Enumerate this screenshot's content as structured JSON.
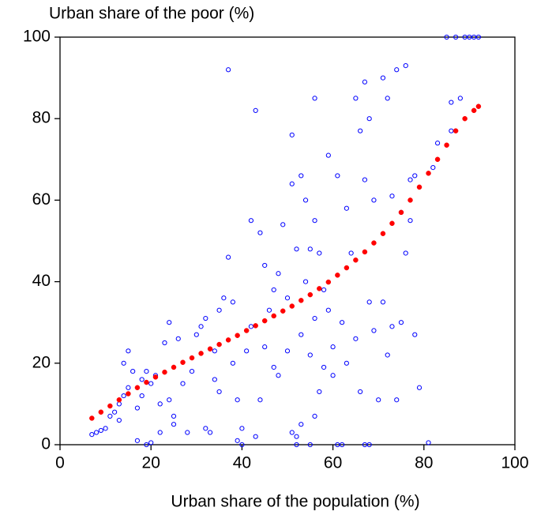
{
  "chart_data": {
    "type": "scatter",
    "title": "Urban share of the poor (%)",
    "x_label": "Urban share of the population (%)",
    "xlim": [
      0,
      100
    ],
    "xticks": [
      0,
      20,
      40,
      60,
      80,
      100
    ],
    "ylim": [
      0,
      100
    ],
    "yticks": [
      0,
      20,
      40,
      60,
      80,
      100
    ],
    "grid": false,
    "series": [
      {
        "color": "#0000ff",
        "marker": "hollow",
        "x": [
          7,
          8,
          9,
          10,
          11,
          12,
          13,
          14,
          15,
          15,
          14,
          16,
          13,
          17,
          18,
          17,
          19,
          20,
          18,
          19,
          20,
          21,
          22,
          22,
          23,
          24,
          24,
          25,
          25,
          26,
          27,
          28,
          29,
          30,
          31,
          32,
          32,
          33,
          34,
          34,
          35,
          35,
          36,
          37,
          37,
          38,
          38,
          39,
          39,
          40,
          40,
          41,
          42,
          42,
          43,
          43,
          44,
          44,
          45,
          45,
          46,
          47,
          47,
          48,
          48,
          49,
          50,
          50,
          51,
          51,
          51,
          52,
          52,
          52,
          53,
          53,
          53,
          54,
          54,
          55,
          55,
          55,
          56,
          56,
          56,
          56,
          57,
          57,
          58,
          58,
          59,
          59,
          60,
          60,
          61,
          61,
          62,
          62,
          63,
          63,
          64,
          65,
          65,
          66,
          66,
          67,
          67,
          67,
          68,
          68,
          68,
          69,
          69,
          70,
          71,
          71,
          72,
          72,
          73,
          73,
          74,
          74,
          75,
          75,
          76,
          76,
          77,
          77,
          78,
          78,
          79,
          81,
          82,
          83,
          85,
          86,
          87,
          88,
          89,
          90,
          91,
          92,
          86
        ],
        "values": [
          2.5,
          3,
          3.5,
          4,
          7,
          8,
          10,
          12,
          14,
          23,
          20,
          18,
          6,
          9,
          12,
          1,
          0,
          0.5,
          16,
          18,
          15,
          17,
          10,
          3,
          25,
          30,
          11,
          7,
          5,
          26,
          15,
          3,
          18,
          27,
          29,
          31,
          4,
          3,
          16,
          23,
          33,
          13,
          36,
          46,
          92,
          20,
          35,
          11,
          1,
          0,
          4,
          23,
          29,
          55,
          2,
          82,
          11,
          52,
          24,
          44,
          33,
          19,
          38,
          17,
          42,
          54,
          23,
          36,
          64,
          76,
          3,
          2,
          48,
          0,
          66,
          27,
          5,
          60,
          40,
          22,
          48,
          0,
          85,
          55,
          31,
          7,
          13,
          47,
          19,
          38,
          71,
          33,
          24,
          17,
          66,
          0,
          30,
          0,
          58,
          20,
          47,
          26,
          85,
          77,
          13,
          89,
          65,
          0,
          80,
          35,
          0,
          60,
          28,
          11,
          35,
          90,
          22,
          85,
          61,
          29,
          11,
          92,
          57,
          30,
          93,
          47,
          65,
          55,
          27,
          66,
          14,
          0.5,
          68,
          74,
          100,
          84,
          100,
          85,
          100,
          100,
          100,
          100,
          77
        ]
      },
      {
        "color": "#ff0000",
        "marker": "filled",
        "x": [
          7,
          9,
          11,
          13,
          15,
          17,
          19,
          21,
          23,
          25,
          27,
          29,
          31,
          33,
          35,
          37,
          39,
          41,
          43,
          45,
          47,
          49,
          51,
          53,
          55,
          57,
          59,
          61,
          63,
          65,
          67,
          69,
          71,
          73,
          75,
          77,
          79,
          81,
          83,
          85,
          87,
          89,
          91,
          92
        ],
        "values": [
          6.5,
          8,
          9.5,
          11,
          12.5,
          14,
          15.3,
          16.6,
          17.8,
          19,
          20.2,
          21.3,
          22.4,
          23.5,
          24.6,
          25.7,
          26.8,
          28,
          29.2,
          30.4,
          31.6,
          32.8,
          34,
          35.4,
          36.8,
          38.3,
          39.9,
          41.6,
          43.4,
          45.3,
          47.3,
          49.5,
          51.8,
          54.3,
          57,
          60,
          63.2,
          66.6,
          70,
          73.5,
          77,
          80,
          82,
          83
        ]
      }
    ]
  }
}
